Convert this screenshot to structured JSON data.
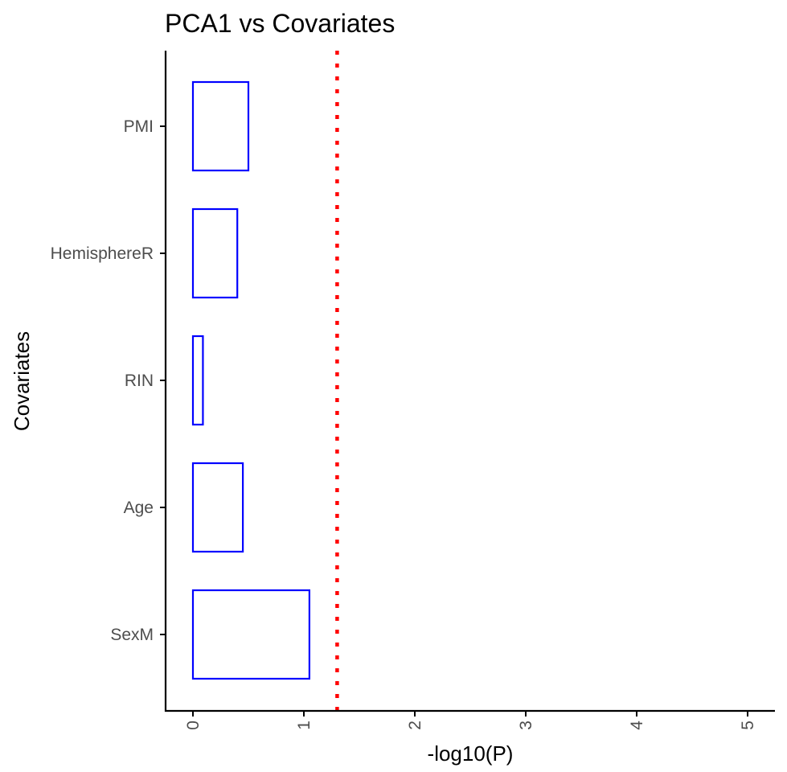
{
  "chart_data": {
    "type": "bar",
    "orientation": "horizontal",
    "title": "PCA1 vs Covariates",
    "xlabel": "-log10(P)",
    "ylabel": "Covariates",
    "categories": [
      "PMI",
      "HemisphereR",
      "RIN",
      "Age",
      "SexM"
    ],
    "values": [
      0.5,
      0.4,
      0.09,
      0.45,
      1.05
    ],
    "xlim": [
      0,
      5
    ],
    "x_ticks": [
      "0",
      "1",
      "2",
      "3",
      "4",
      "5"
    ],
    "threshold_line": {
      "value": 1.3,
      "style": "dotted"
    },
    "bar_fill": "none",
    "bar_outline_color": "#0000ff",
    "threshold_color": "#ff0000",
    "grid": false,
    "legend": "none"
  }
}
